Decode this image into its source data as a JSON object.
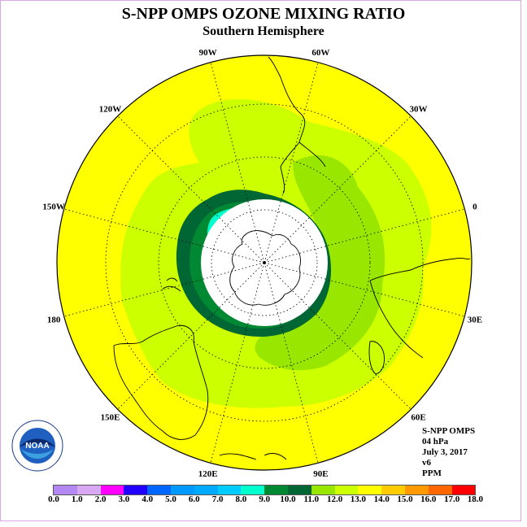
{
  "header": {
    "title": "S-NPP OMPS OZONE MIXING RATIO",
    "subtitle": "Southern Hemisphere"
  },
  "map": {
    "projection": "south polar stereographic",
    "longitude_labels": [
      "90W",
      "60W",
      "30W",
      "0",
      "30E",
      "60E",
      "90E",
      "120E",
      "150E",
      "180",
      "150W",
      "120W"
    ],
    "colors": {
      "background_field": "#ffff00",
      "band_11_12": "#ccff00",
      "band_10_11": "#99e600",
      "band_9_10": "#006633",
      "band_8_9": "#008833",
      "band_7_8": "#00ffcc",
      "polar_night": "#ffffff",
      "coastline": "#000000"
    }
  },
  "info": {
    "line1": "S-NPP OMPS",
    "line2": "04 hPa",
    "line3": "July 3, 2017",
    "line4": "v6",
    "line5": "PPM"
  },
  "logo": {
    "text": "NOAA",
    "ring_text": "NATIONAL OCEANIC AND ATMOSPHERIC ADMINISTRATION · U.S. DEPARTMENT OF COMMERCE"
  },
  "colorbar": {
    "ticks": [
      "0.0",
      "1.0",
      "2.0",
      "3.0",
      "4.0",
      "5.0",
      "6.0",
      "7.0",
      "8.0",
      "9.0",
      "10.0",
      "11.0",
      "12.0",
      "13.0",
      "14.0",
      "15.0",
      "16.0",
      "17.0",
      "18.0"
    ],
    "colors": [
      "#b388f2",
      "#d9a8f5",
      "#ff00ff",
      "#2200ff",
      "#0066ff",
      "#0099ff",
      "#00aaff",
      "#00ccff",
      "#00ffcc",
      "#008833",
      "#006633",
      "#99e600",
      "#ccff00",
      "#ffff00",
      "#ffcc00",
      "#ff9900",
      "#ff6600",
      "#ff0000",
      "#885533"
    ]
  }
}
